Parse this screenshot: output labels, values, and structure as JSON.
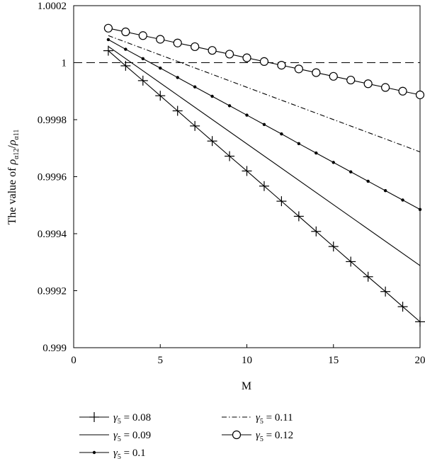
{
  "chart_data": {
    "type": "line",
    "xlabel": "M",
    "ylabel": {
      "prefix": "The value of ",
      "numerator_symbol": "ρ",
      "numerator_subscript": "α12",
      "divider": "/",
      "denominator_symbol": "ρ",
      "denominator_subscript": "α11"
    },
    "xlim": [
      0,
      20
    ],
    "ylim": [
      0.999,
      1.0002
    ],
    "x_ticks": [
      0,
      5,
      10,
      15,
      20
    ],
    "x_tick_labels": [
      "0",
      "5",
      "10",
      "15",
      "20"
    ],
    "y_ticks": [
      0.999,
      0.9992,
      0.9994,
      0.9996,
      0.9998,
      1,
      1.0002
    ],
    "y_tick_labels": [
      "0.999",
      "0.9992",
      "0.9994",
      "0.9996",
      "0.9998",
      "1",
      "1.0002"
    ],
    "reference_line": {
      "y": 1,
      "style": "dashed"
    },
    "grid": false,
    "legend_position": "below",
    "series": [
      {
        "name": "γ5 = 0.08",
        "legend": {
          "symbol": "γ",
          "subscript": "5",
          "value": " = 0.08"
        },
        "marker": "plus",
        "line": "solid",
        "x": [
          2,
          3,
          4,
          5,
          6,
          7,
          8,
          9,
          10,
          11,
          12,
          13,
          14,
          15,
          16,
          17,
          18,
          19,
          20
        ],
        "y": [
          1.000042,
          0.999989,
          0.999937,
          0.999884,
          0.999831,
          0.999778,
          0.999725,
          0.999672,
          0.99962,
          0.999567,
          0.999514,
          0.999461,
          0.999408,
          0.999355,
          0.999302,
          0.999249,
          0.999197,
          0.999144,
          0.999091
        ]
      },
      {
        "name": "γ5 = 0.09",
        "legend": {
          "symbol": "γ",
          "subscript": "5",
          "value": " = 0.09"
        },
        "marker": "none",
        "line": "solid",
        "x": [
          2,
          20
        ],
        "y": [
          1.000057,
          0.999288
        ]
      },
      {
        "name": "γ5 = 0.1",
        "legend": {
          "symbol": "γ",
          "subscript": "5",
          "value": " = 0.1"
        },
        "marker": "dot",
        "line": "solid",
        "x": [
          2,
          3,
          4,
          5,
          6,
          7,
          8,
          9,
          10,
          11,
          12,
          13,
          14,
          15,
          16,
          17,
          18,
          19,
          20
        ],
        "y": [
          1.000081,
          1.000047,
          1.000014,
          0.999981,
          0.999948,
          0.999915,
          0.999882,
          0.999849,
          0.999816,
          0.999783,
          0.99975,
          0.999716,
          0.999683,
          0.99965,
          0.999617,
          0.999584,
          0.999551,
          0.999518,
          0.999485
        ]
      },
      {
        "name": "γ5 = 0.11",
        "legend": {
          "symbol": "γ",
          "subscript": "5",
          "value": " = 0.11"
        },
        "marker": "none",
        "line": "dashdot",
        "x": [
          2,
          20
        ],
        "y": [
          1.000095,
          0.999687
        ]
      },
      {
        "name": "γ5 = 0.12",
        "legend": {
          "symbol": "γ",
          "subscript": "5",
          "value": " = 0.12"
        },
        "marker": "circle",
        "line": "solid",
        "x": [
          2,
          3,
          4,
          5,
          6,
          7,
          8,
          9,
          10,
          11,
          12,
          13,
          14,
          15,
          16,
          17,
          18,
          19,
          20
        ],
        "y": [
          1.000121,
          1.000108,
          1.000095,
          1.000082,
          1.000069,
          1.000056,
          1.000043,
          1.00003,
          1.000017,
          1.000004,
          0.999991,
          0.999978,
          0.999965,
          0.999952,
          0.999939,
          0.999926,
          0.999913,
          0.9999,
          0.999887
        ]
      }
    ]
  }
}
